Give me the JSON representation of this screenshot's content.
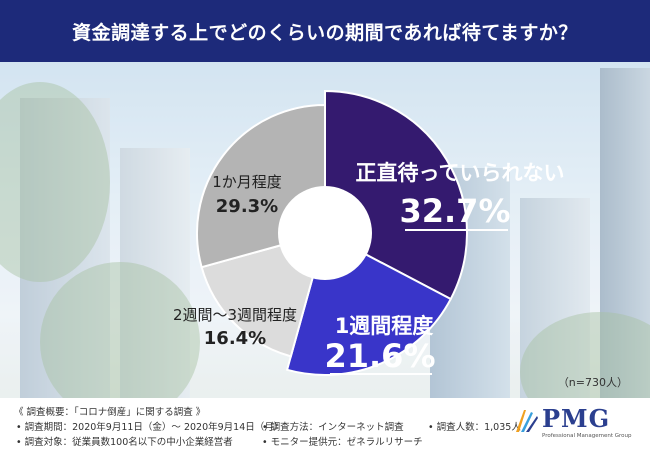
{
  "header": {
    "title": "資金調達する上でどのくらいの期間であれば待てますか？"
  },
  "chart_data": {
    "type": "pie",
    "slices": [
      {
        "label": "正直待っていられない",
        "value": 32.7,
        "value_label": "32.7%",
        "color": "#341a6f"
      },
      {
        "label": "1週間程度",
        "value": 21.6,
        "value_label": "21.6%",
        "color": "#3935c9"
      },
      {
        "label": "2週間～3週間程度",
        "value": 16.4,
        "value_label": "16.4%",
        "color": "#dcdcdc"
      },
      {
        "label": "1か月程度",
        "value": 29.3,
        "value_label": "29.3%",
        "color": "#b4b4b4"
      }
    ],
    "sample_note": "（n=730人）"
  },
  "footer": {
    "overview": "《 調査概要：「コロナ倒産」に関する調査 》",
    "period": "• 調査期間：2020年9月11日（金）～ 2020年9月14日（月）",
    "method": "• 調査方法：インターネット調査",
    "count": "• 調査人数：1,035人",
    "target": "• 調査対象：従業員数100名以下の中小企業経営者",
    "provider": "• モニター提供元：ゼネラルリサーチ"
  },
  "logo": {
    "text": "PMG",
    "subtitle": "Professional Management Group"
  }
}
